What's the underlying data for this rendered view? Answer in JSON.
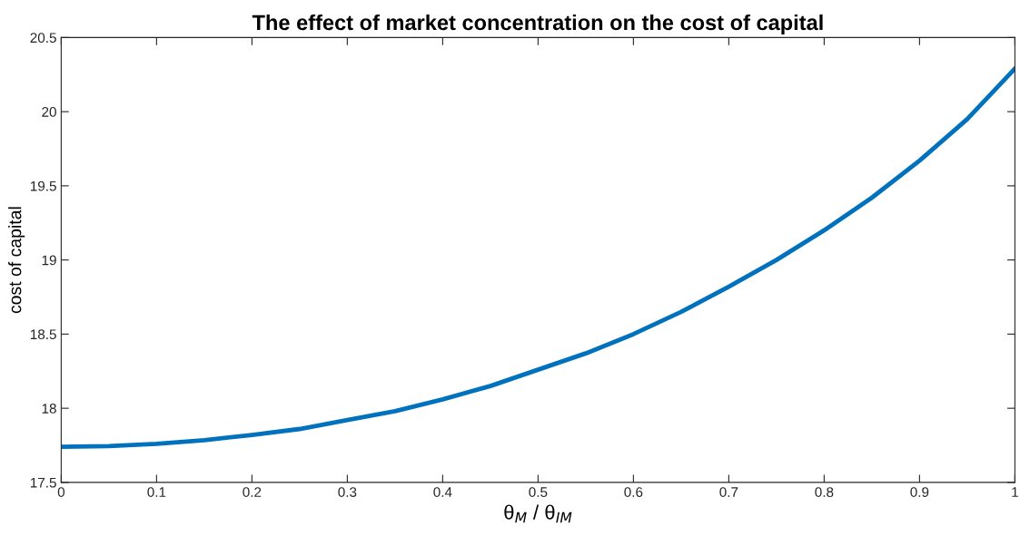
{
  "chart_data": {
    "type": "line",
    "title": "The effect of market concentration on the cost of capital",
    "xlabel": "θ$_{M}$ / θ$_{IM}$",
    "ylabel": "cost of capital",
    "x": [
      0,
      0.05,
      0.1,
      0.15,
      0.2,
      0.25,
      0.3,
      0.35,
      0.4,
      0.45,
      0.5,
      0.55,
      0.6,
      0.65,
      0.7,
      0.75,
      0.8,
      0.85,
      0.9,
      0.95,
      1
    ],
    "series": [
      {
        "color": "#0072bd",
        "values": [
          17.74,
          17.745,
          17.76,
          17.785,
          17.82,
          17.86,
          17.92,
          17.98,
          18.06,
          18.15,
          18.26,
          18.37,
          18.5,
          18.65,
          18.82,
          19.0,
          19.2,
          19.42,
          19.67,
          19.95,
          20.29
        ]
      }
    ],
    "xlim": [
      0,
      1
    ],
    "xticks": [
      0,
      0.1,
      0.2,
      0.3,
      0.4,
      0.5,
      0.6,
      0.7,
      0.8,
      0.9,
      1
    ],
    "ylim": [
      17.5,
      20.5
    ],
    "yticks": [
      17.5,
      18,
      18.5,
      19,
      19.5,
      20,
      20.5
    ],
    "grid": false,
    "legend": false,
    "marker": "none",
    "line_style": "solid"
  }
}
